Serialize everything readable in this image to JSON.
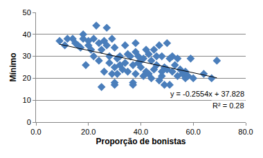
{
  "chart_data": {
    "type": "scatter",
    "x_label": "Proporção de bonistas",
    "y_label": "Mínimo",
    "xlim": [
      0,
      80
    ],
    "xticks": [
      {
        "value": 0,
        "label": "0.0"
      },
      {
        "value": 20,
        "label": "20.0"
      },
      {
        "value": 40,
        "label": "40.0"
      },
      {
        "value": 60,
        "label": "60.0"
      },
      {
        "value": 80,
        "label": "80.0"
      }
    ],
    "ylim": [
      0,
      50
    ],
    "yticks": [
      0,
      10,
      20,
      30,
      40,
      50
    ],
    "grid": true,
    "annotations": [
      "y = -0.2554x + 37.828",
      "R² = 0.28"
    ],
    "series": [
      {
        "type": "scatter",
        "marker": "diamond",
        "color": "#4a7ebb",
        "x": [
          9,
          11,
          12,
          14,
          15,
          16,
          17,
          18,
          18,
          19,
          20,
          20,
          21,
          22,
          22,
          23,
          24,
          24,
          25,
          25,
          26,
          26,
          27,
          27,
          28,
          28,
          29,
          29,
          30,
          30,
          30,
          30,
          31,
          31,
          32,
          32,
          33,
          34,
          34,
          35,
          35,
          36,
          37,
          37,
          37,
          38,
          38,
          38,
          39,
          39,
          40,
          40,
          41,
          41,
          42,
          42,
          43,
          43,
          44,
          44,
          45,
          45,
          46,
          46,
          47,
          47,
          48,
          48,
          48,
          49,
          49,
          50,
          50,
          51,
          51,
          52,
          52,
          53,
          54,
          54,
          55,
          56,
          57,
          57,
          58,
          59,
          60,
          64,
          67,
          69
        ],
        "values": [
          37,
          35,
          38,
          38,
          36,
          35,
          34,
          38,
          40,
          26,
          35,
          37,
          33,
          38,
          30,
          44,
          28,
          36,
          16,
          33,
          37,
          23,
          43,
          35,
          30,
          27,
          22,
          38,
          25,
          34,
          18,
          17,
          22,
          29,
          30,
          26,
          24,
          35,
          27,
          23,
          31,
          30,
          18,
          17,
          26,
          32,
          36,
          22,
          27,
          30,
          28,
          25,
          21,
          29,
          33,
          23,
          31,
          22,
          28,
          20,
          33,
          24,
          26,
          30,
          19,
          35,
          21,
          30,
          23,
          25,
          17,
          36,
          24,
          29,
          17,
          23,
          30,
          26,
          29,
          21,
          24,
          22,
          20,
          23,
          21,
          29,
          20,
          22,
          20,
          28
        ]
      },
      {
        "type": "line",
        "line_style": "solid",
        "color": "#000000",
        "x": [
          9,
          69
        ],
        "values": [
          35.5,
          20.2
        ]
      }
    ]
  }
}
